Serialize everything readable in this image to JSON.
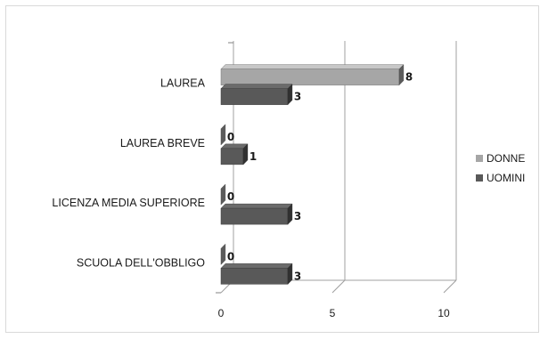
{
  "chart_data": {
    "type": "bar",
    "orientation": "horizontal",
    "three_d": true,
    "categories": [
      "LAUREA",
      "LAUREA BREVE",
      "LICENZA MEDIA SUPERIORE",
      "SCUOLA DELL'OBBLIGO"
    ],
    "series": [
      {
        "name": "DONNE",
        "values": [
          8,
          0,
          0,
          0
        ],
        "color": "#a6a6a6"
      },
      {
        "name": "UOMINI",
        "values": [
          3,
          1,
          3,
          3
        ],
        "color": "#595959"
      }
    ],
    "title": "",
    "xlabel": "",
    "ylabel": "",
    "xlim": [
      0,
      10
    ],
    "x_ticks": [
      "0",
      "5",
      "10"
    ],
    "grid": true,
    "legend_position": "right"
  }
}
